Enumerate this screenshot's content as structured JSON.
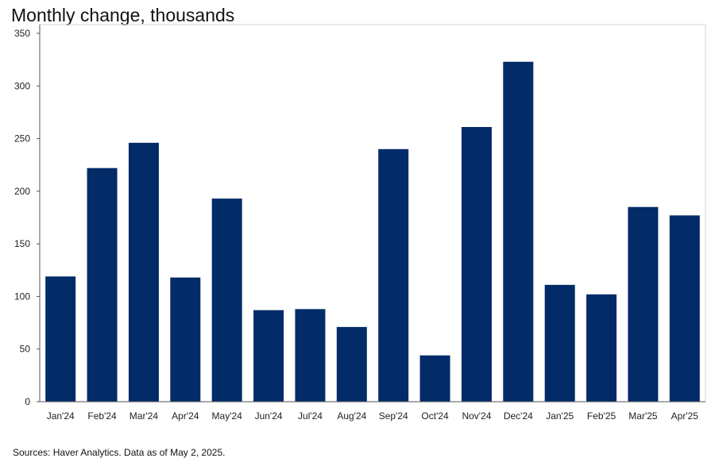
{
  "title": "Monthly change, thousands",
  "source": "Sources: Haver Analytics. Data as of May 2, 2025.",
  "colors": {
    "bar": "#022b68",
    "frame": "#d4d4d4",
    "axis": "#555555"
  },
  "chart_data": {
    "type": "bar",
    "title": "Monthly change, thousands",
    "xlabel": "",
    "ylabel": "",
    "categories": [
      "Jan'24",
      "Feb'24",
      "Mar'24",
      "Apr'24",
      "May'24",
      "Jun'24",
      "Jul'24",
      "Aug'24",
      "Sep'24",
      "Oct'24",
      "Nov'24",
      "Dec'24",
      "Jan'25",
      "Feb'25",
      "Mar'25",
      "Apr'25"
    ],
    "values": [
      119,
      222,
      246,
      118,
      193,
      87,
      88,
      71,
      240,
      44,
      261,
      323,
      111,
      102,
      185,
      177
    ],
    "ylim": [
      0,
      350
    ],
    "yticks": [
      0,
      50,
      100,
      150,
      200,
      250,
      300,
      350
    ],
    "grid": false,
    "legend": "none"
  }
}
